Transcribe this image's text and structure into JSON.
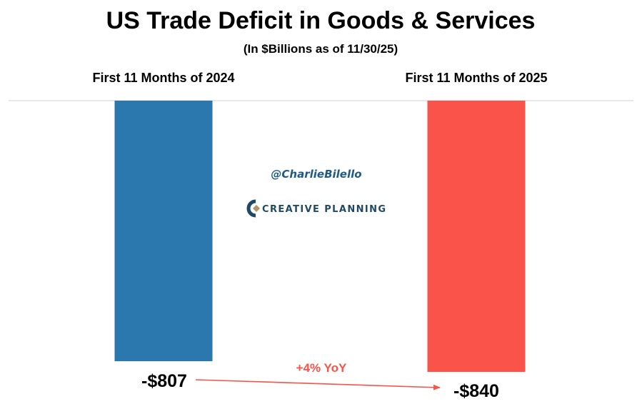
{
  "chart_data": {
    "type": "bar",
    "title": "US Trade Deficit in Goods & Services",
    "subtitle": "(In $Billions as of 11/30/25)",
    "categories": [
      "First 11 Months of 2024",
      "First 11 Months of 2025"
    ],
    "values": [
      -807,
      -840
    ],
    "value_labels": [
      "-$807",
      "-$840"
    ],
    "colors": [
      "#2b78ae",
      "#f9534a"
    ],
    "ylim": [
      -840,
      0
    ],
    "grid": false,
    "annotation": {
      "text": "+4% YoY",
      "color": "#f9534a",
      "from_category": 0,
      "to_category": 1
    }
  },
  "watermark": {
    "handle": "@CharlieBilello",
    "brand": "CREATIVE PLANNING",
    "handle_color": "#1f5b86",
    "brand_color": "#1f4a66",
    "logo_icon": "creative-planning-logo-icon"
  }
}
